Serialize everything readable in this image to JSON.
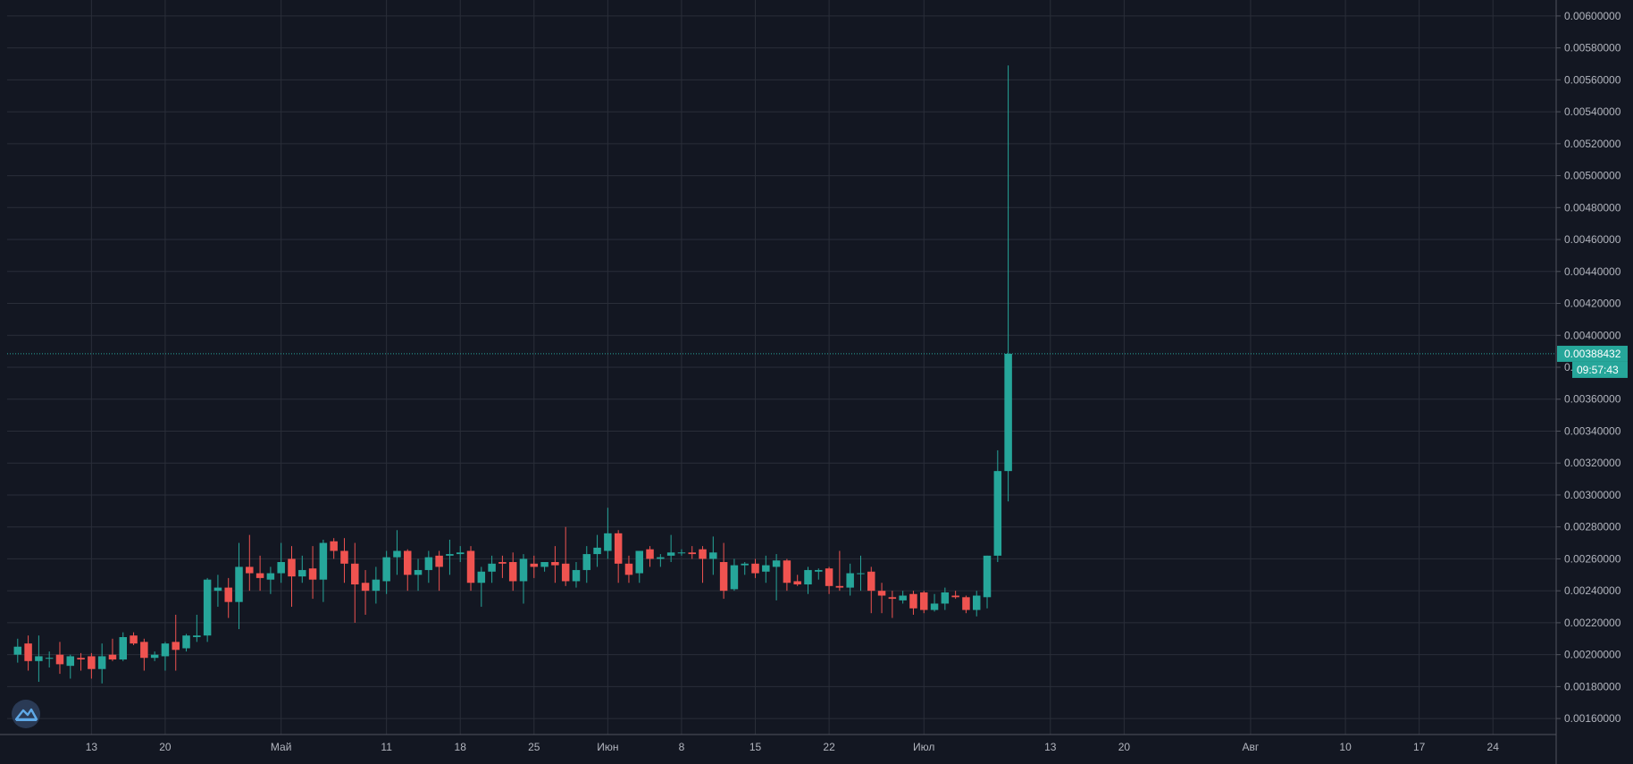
{
  "colors": {
    "background": "#131722",
    "grid": "#2a2e39",
    "axis_text": "#b2b5be",
    "up": "#26a69a",
    "down": "#ef5350",
    "badge": "#26a69a"
  },
  "logo": {
    "icon": "logo-icon"
  },
  "last_price_label": "0.00388432",
  "countdown_label": "09:57:43",
  "chart_data": {
    "type": "candlestick",
    "x_tick_labels": [
      "13",
      "20",
      "Май",
      "11",
      "18",
      "25",
      "Июн",
      "8",
      "15",
      "22",
      "Июл",
      "13",
      "20",
      "Авг",
      "10",
      "17",
      "24"
    ],
    "x_tick_dates": [
      "2020-04-13",
      "2020-04-20",
      "2020-05-01",
      "2020-05-11",
      "2020-05-18",
      "2020-05-25",
      "2020-06-01",
      "2020-06-08",
      "2020-06-15",
      "2020-06-22",
      "2020-07-01",
      "2020-07-13",
      "2020-07-20",
      "2020-08-01",
      "2020-08-10",
      "2020-08-17",
      "2020-08-24"
    ],
    "y_tick_labels": [
      "0.00160000",
      "0.00180000",
      "0.00200000",
      "0.00220000",
      "0.00240000",
      "0.00260000",
      "0.00280000",
      "0.00300000",
      "0.00320000",
      "0.00340000",
      "0.00360000",
      "0.00380000",
      "0.00400000",
      "0.00420000",
      "0.00440000",
      "0.00460000",
      "0.00480000",
      "0.00500000",
      "0.00520000",
      "0.00540000",
      "0.00560000",
      "0.00580000",
      "0.00600000"
    ],
    "ylim": [
      0.0015,
      0.0061
    ],
    "xlim": [
      "2020-04-05",
      "2020-08-30"
    ],
    "last_price": 0.00388432,
    "grid": true,
    "candles": [
      {
        "date": "2020-04-06",
        "open": 0.002,
        "high": 0.0021,
        "low": 0.00195,
        "close": 0.00205
      },
      {
        "date": "2020-04-07",
        "open": 0.00207,
        "high": 0.00212,
        "low": 0.0019,
        "close": 0.00196
      },
      {
        "date": "2020-04-08",
        "open": 0.00196,
        "high": 0.00212,
        "low": 0.00183,
        "close": 0.00199
      },
      {
        "date": "2020-04-09",
        "open": 0.00198,
        "high": 0.00202,
        "low": 0.00192,
        "close": 0.00198
      },
      {
        "date": "2020-04-10",
        "open": 0.002,
        "high": 0.00208,
        "low": 0.00188,
        "close": 0.00194
      },
      {
        "date": "2020-04-11",
        "open": 0.00193,
        "high": 0.002,
        "low": 0.00185,
        "close": 0.00199
      },
      {
        "date": "2020-04-12",
        "open": 0.00198,
        "high": 0.00201,
        "low": 0.0019,
        "close": 0.00197
      },
      {
        "date": "2020-04-13",
        "open": 0.00199,
        "high": 0.00201,
        "low": 0.00185,
        "close": 0.00191
      },
      {
        "date": "2020-04-14",
        "open": 0.00191,
        "high": 0.00207,
        "low": 0.00182,
        "close": 0.00199
      },
      {
        "date": "2020-04-15",
        "open": 0.002,
        "high": 0.0021,
        "low": 0.00196,
        "close": 0.00197
      },
      {
        "date": "2020-04-16",
        "open": 0.00197,
        "high": 0.00214,
        "low": 0.00196,
        "close": 0.00211
      },
      {
        "date": "2020-04-17",
        "open": 0.00212,
        "high": 0.00214,
        "low": 0.00206,
        "close": 0.00207
      },
      {
        "date": "2020-04-18",
        "open": 0.00208,
        "high": 0.0021,
        "low": 0.0019,
        "close": 0.00198
      },
      {
        "date": "2020-04-19",
        "open": 0.00198,
        "high": 0.00202,
        "low": 0.00196,
        "close": 0.002
      },
      {
        "date": "2020-04-20",
        "open": 0.00199,
        "high": 0.00208,
        "low": 0.0019,
        "close": 0.00207
      },
      {
        "date": "2020-04-21",
        "open": 0.00208,
        "high": 0.00225,
        "low": 0.0019,
        "close": 0.00203
      },
      {
        "date": "2020-04-22",
        "open": 0.00204,
        "high": 0.00213,
        "low": 0.00202,
        "close": 0.00212
      },
      {
        "date": "2020-04-23",
        "open": 0.00211,
        "high": 0.00225,
        "low": 0.00208,
        "close": 0.00212
      },
      {
        "date": "2020-04-24",
        "open": 0.00212,
        "high": 0.00248,
        "low": 0.00208,
        "close": 0.00247
      },
      {
        "date": "2020-04-25",
        "open": 0.0024,
        "high": 0.0025,
        "low": 0.0023,
        "close": 0.00242
      },
      {
        "date": "2020-04-26",
        "open": 0.00242,
        "high": 0.00248,
        "low": 0.00223,
        "close": 0.00233
      },
      {
        "date": "2020-04-27",
        "open": 0.00233,
        "high": 0.0027,
        "low": 0.00216,
        "close": 0.00255
      },
      {
        "date": "2020-04-28",
        "open": 0.00255,
        "high": 0.00275,
        "low": 0.0024,
        "close": 0.00251
      },
      {
        "date": "2020-04-29",
        "open": 0.00251,
        "high": 0.00262,
        "low": 0.0024,
        "close": 0.00248
      },
      {
        "date": "2020-04-30",
        "open": 0.00247,
        "high": 0.00255,
        "low": 0.00238,
        "close": 0.00251
      },
      {
        "date": "2020-05-01",
        "open": 0.00251,
        "high": 0.0027,
        "low": 0.00245,
        "close": 0.00258
      },
      {
        "date": "2020-05-02",
        "open": 0.0026,
        "high": 0.00268,
        "low": 0.0023,
        "close": 0.00249
      },
      {
        "date": "2020-05-03",
        "open": 0.00249,
        "high": 0.00262,
        "low": 0.00245,
        "close": 0.00253
      },
      {
        "date": "2020-05-04",
        "open": 0.00254,
        "high": 0.00268,
        "low": 0.00235,
        "close": 0.00247
      },
      {
        "date": "2020-05-05",
        "open": 0.00247,
        "high": 0.00272,
        "low": 0.00233,
        "close": 0.0027
      },
      {
        "date": "2020-05-06",
        "open": 0.00271,
        "high": 0.00273,
        "low": 0.0026,
        "close": 0.00265
      },
      {
        "date": "2020-05-07",
        "open": 0.00265,
        "high": 0.00273,
        "low": 0.00245,
        "close": 0.00257
      },
      {
        "date": "2020-05-08",
        "open": 0.00257,
        "high": 0.0027,
        "low": 0.0022,
        "close": 0.00244
      },
      {
        "date": "2020-05-09",
        "open": 0.00245,
        "high": 0.00253,
        "low": 0.00225,
        "close": 0.0024
      },
      {
        "date": "2020-05-10",
        "open": 0.0024,
        "high": 0.00255,
        "low": 0.00232,
        "close": 0.00247
      },
      {
        "date": "2020-05-11",
        "open": 0.00246,
        "high": 0.00265,
        "low": 0.00238,
        "close": 0.00261
      },
      {
        "date": "2020-05-12",
        "open": 0.00261,
        "high": 0.00278,
        "low": 0.0025,
        "close": 0.00265
      },
      {
        "date": "2020-05-13",
        "open": 0.00265,
        "high": 0.00266,
        "low": 0.0024,
        "close": 0.0025
      },
      {
        "date": "2020-05-14",
        "open": 0.0025,
        "high": 0.0026,
        "low": 0.0024,
        "close": 0.00253
      },
      {
        "date": "2020-05-15",
        "open": 0.00253,
        "high": 0.00265,
        "low": 0.00245,
        "close": 0.00261
      },
      {
        "date": "2020-05-16",
        "open": 0.00262,
        "high": 0.00265,
        "low": 0.0024,
        "close": 0.00255
      },
      {
        "date": "2020-05-17",
        "open": 0.00262,
        "high": 0.00272,
        "low": 0.0025,
        "close": 0.00263
      },
      {
        "date": "2020-05-18",
        "open": 0.00263,
        "high": 0.00268,
        "low": 0.00258,
        "close": 0.00264
      },
      {
        "date": "2020-05-19",
        "open": 0.00265,
        "high": 0.00268,
        "low": 0.0024,
        "close": 0.00245
      },
      {
        "date": "2020-05-20",
        "open": 0.00245,
        "high": 0.00255,
        "low": 0.0023,
        "close": 0.00252
      },
      {
        "date": "2020-05-21",
        "open": 0.00252,
        "high": 0.00262,
        "low": 0.00245,
        "close": 0.00257
      },
      {
        "date": "2020-05-22",
        "open": 0.00258,
        "high": 0.00262,
        "low": 0.00248,
        "close": 0.00257
      },
      {
        "date": "2020-05-23",
        "open": 0.00258,
        "high": 0.00264,
        "low": 0.0024,
        "close": 0.00246
      },
      {
        "date": "2020-05-24",
        "open": 0.00246,
        "high": 0.00263,
        "low": 0.00232,
        "close": 0.0026
      },
      {
        "date": "2020-05-25",
        "open": 0.00257,
        "high": 0.00262,
        "low": 0.00248,
        "close": 0.00255
      },
      {
        "date": "2020-05-26",
        "open": 0.00255,
        "high": 0.00258,
        "low": 0.00252,
        "close": 0.00258
      },
      {
        "date": "2020-05-27",
        "open": 0.00258,
        "high": 0.00268,
        "low": 0.00245,
        "close": 0.00256
      },
      {
        "date": "2020-05-28",
        "open": 0.00257,
        "high": 0.0028,
        "low": 0.00243,
        "close": 0.00246
      },
      {
        "date": "2020-05-29",
        "open": 0.00246,
        "high": 0.00258,
        "low": 0.00242,
        "close": 0.00253
      },
      {
        "date": "2020-05-30",
        "open": 0.00253,
        "high": 0.00268,
        "low": 0.00245,
        "close": 0.00263
      },
      {
        "date": "2020-05-31",
        "open": 0.00263,
        "high": 0.00275,
        "low": 0.00255,
        "close": 0.00267
      },
      {
        "date": "2020-06-01",
        "open": 0.00265,
        "high": 0.00292,
        "low": 0.0026,
        "close": 0.00276
      },
      {
        "date": "2020-06-02",
        "open": 0.00276,
        "high": 0.00278,
        "low": 0.00245,
        "close": 0.00257
      },
      {
        "date": "2020-06-03",
        "open": 0.00257,
        "high": 0.00262,
        "low": 0.00245,
        "close": 0.0025
      },
      {
        "date": "2020-06-04",
        "open": 0.00251,
        "high": 0.00265,
        "low": 0.00245,
        "close": 0.00265
      },
      {
        "date": "2020-06-05",
        "open": 0.00266,
        "high": 0.00268,
        "low": 0.00255,
        "close": 0.0026
      },
      {
        "date": "2020-06-06",
        "open": 0.0026,
        "high": 0.00263,
        "low": 0.00255,
        "close": 0.00261
      },
      {
        "date": "2020-06-07",
        "open": 0.00262,
        "high": 0.00275,
        "low": 0.00258,
        "close": 0.00264
      },
      {
        "date": "2020-06-08",
        "open": 0.00264,
        "high": 0.00266,
        "low": 0.00262,
        "close": 0.00264
      },
      {
        "date": "2020-06-09",
        "open": 0.00264,
        "high": 0.00268,
        "low": 0.0026,
        "close": 0.00263
      },
      {
        "date": "2020-06-10",
        "open": 0.00266,
        "high": 0.00268,
        "low": 0.00245,
        "close": 0.0026
      },
      {
        "date": "2020-06-11",
        "open": 0.0026,
        "high": 0.00274,
        "low": 0.0025,
        "close": 0.00264
      },
      {
        "date": "2020-06-12",
        "open": 0.00258,
        "high": 0.0027,
        "low": 0.00235,
        "close": 0.0024
      },
      {
        "date": "2020-06-13",
        "open": 0.00241,
        "high": 0.0026,
        "low": 0.0024,
        "close": 0.00256
      },
      {
        "date": "2020-06-14",
        "open": 0.00256,
        "high": 0.00258,
        "low": 0.0025,
        "close": 0.00257
      },
      {
        "date": "2020-06-15",
        "open": 0.00257,
        "high": 0.0026,
        "low": 0.00248,
        "close": 0.00251
      },
      {
        "date": "2020-06-16",
        "open": 0.00252,
        "high": 0.00262,
        "low": 0.00245,
        "close": 0.00256
      },
      {
        "date": "2020-06-17",
        "open": 0.00255,
        "high": 0.00263,
        "low": 0.00234,
        "close": 0.00259
      },
      {
        "date": "2020-06-18",
        "open": 0.00259,
        "high": 0.0026,
        "low": 0.0024,
        "close": 0.00245
      },
      {
        "date": "2020-06-19",
        "open": 0.00246,
        "high": 0.0025,
        "low": 0.00243,
        "close": 0.00244
      },
      {
        "date": "2020-06-20",
        "open": 0.00244,
        "high": 0.00255,
        "low": 0.00238,
        "close": 0.00253
      },
      {
        "date": "2020-06-21",
        "open": 0.00252,
        "high": 0.00254,
        "low": 0.00247,
        "close": 0.00253
      },
      {
        "date": "2020-06-22",
        "open": 0.00254,
        "high": 0.00255,
        "low": 0.00238,
        "close": 0.00243
      },
      {
        "date": "2020-06-23",
        "open": 0.00243,
        "high": 0.00265,
        "low": 0.0024,
        "close": 0.00242
      },
      {
        "date": "2020-06-24",
        "open": 0.00242,
        "high": 0.00257,
        "low": 0.00237,
        "close": 0.00251
      },
      {
        "date": "2020-06-25",
        "open": 0.00251,
        "high": 0.00262,
        "low": 0.0024,
        "close": 0.00251
      },
      {
        "date": "2020-06-26",
        "open": 0.00252,
        "high": 0.00255,
        "low": 0.00226,
        "close": 0.0024
      },
      {
        "date": "2020-06-27",
        "open": 0.0024,
        "high": 0.00245,
        "low": 0.00226,
        "close": 0.00237
      },
      {
        "date": "2020-06-28",
        "open": 0.00236,
        "high": 0.0024,
        "low": 0.00223,
        "close": 0.00235
      },
      {
        "date": "2020-06-29",
        "open": 0.00234,
        "high": 0.0024,
        "low": 0.00232,
        "close": 0.00237
      },
      {
        "date": "2020-06-30",
        "open": 0.00238,
        "high": 0.0024,
        "low": 0.00225,
        "close": 0.00229
      },
      {
        "date": "2020-07-01",
        "open": 0.00239,
        "high": 0.0024,
        "low": 0.00226,
        "close": 0.00228
      },
      {
        "date": "2020-07-02",
        "open": 0.00228,
        "high": 0.00238,
        "low": 0.00227,
        "close": 0.00232
      },
      {
        "date": "2020-07-03",
        "open": 0.00232,
        "high": 0.00242,
        "low": 0.00228,
        "close": 0.00239
      },
      {
        "date": "2020-07-04",
        "open": 0.00237,
        "high": 0.0024,
        "low": 0.00235,
        "close": 0.00236
      },
      {
        "date": "2020-07-05",
        "open": 0.00236,
        "high": 0.00237,
        "low": 0.00226,
        "close": 0.00228
      },
      {
        "date": "2020-07-06",
        "open": 0.00228,
        "high": 0.0024,
        "low": 0.00224,
        "close": 0.00237
      },
      {
        "date": "2020-07-07",
        "open": 0.00236,
        "high": 0.00262,
        "low": 0.00229,
        "close": 0.00262
      },
      {
        "date": "2020-07-08",
        "open": 0.00262,
        "high": 0.00328,
        "low": 0.00258,
        "close": 0.00315
      },
      {
        "date": "2020-07-09",
        "open": 0.00315,
        "high": 0.00569,
        "low": 0.00296,
        "close": 0.00388432
      }
    ]
  }
}
